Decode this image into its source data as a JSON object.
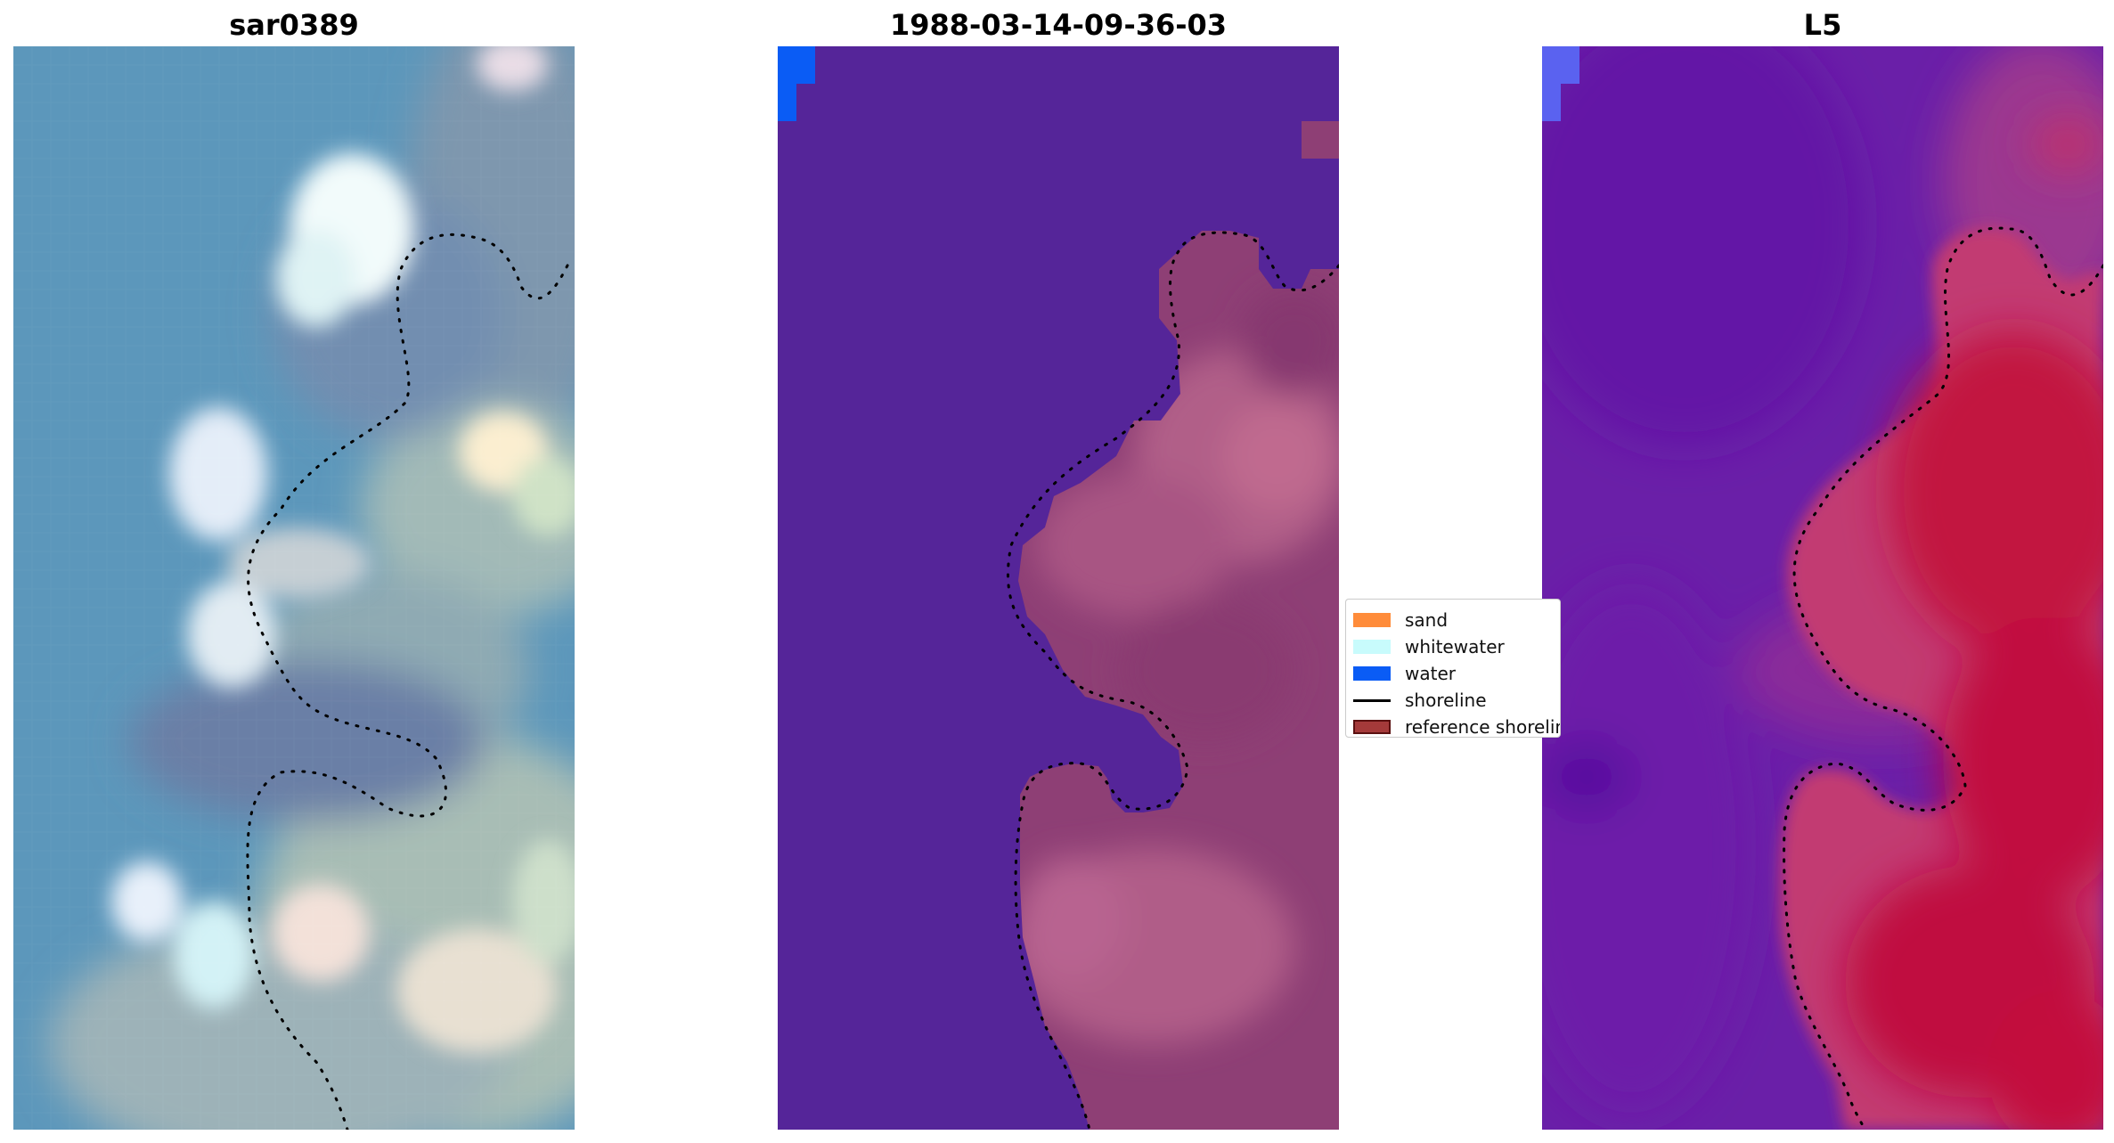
{
  "panels": [
    {
      "title": "sar0389"
    },
    {
      "title": "1988-03-14-09-36-03"
    },
    {
      "title": "L5"
    }
  ],
  "legend": {
    "items": [
      {
        "label": "sand",
        "color": "#ff8c3a"
      },
      {
        "label": "whitewater",
        "color": "#c8fbfc"
      },
      {
        "label": "water",
        "color": "#0a5cf5"
      },
      {
        "label": "shoreline",
        "color": "#000000"
      },
      {
        "label": "reference shoreline",
        "color": "#a43a3a"
      }
    ]
  },
  "colors": {
    "rgb_water": "#5c97bb",
    "class_water": "#552599",
    "class_land": "#9a4a7a",
    "index_low": "#6a1fa8",
    "index_high": "#c20b3e"
  }
}
